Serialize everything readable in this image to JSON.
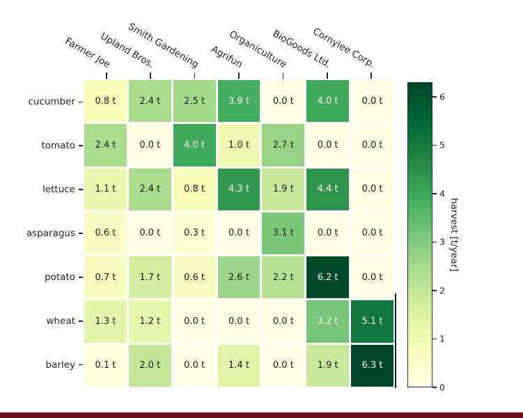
{
  "chart_data": {
    "type": "heatmap",
    "rows": [
      "cucumber",
      "tomato",
      "lettuce",
      "asparagus",
      "potato",
      "wheat",
      "barley"
    ],
    "columns": [
      "Farmer Joe",
      "Upland Bros.",
      "Smith Gardening",
      "Agrifun",
      "Organiculture",
      "BioGoods Ltd.",
      "Cornylee Corp."
    ],
    "values": [
      [
        0.8,
        2.4,
        2.5,
        3.9,
        0.0,
        4.0,
        0.0
      ],
      [
        2.4,
        0.0,
        4.0,
        1.0,
        2.7,
        0.0,
        0.0
      ],
      [
        1.1,
        2.4,
        0.8,
        4.3,
        1.9,
        4.4,
        0.0
      ],
      [
        0.6,
        0.0,
        0.3,
        0.0,
        3.1,
        0.0,
        0.0
      ],
      [
        0.7,
        1.7,
        0.6,
        2.6,
        2.2,
        6.2,
        0.0
      ],
      [
        1.3,
        1.2,
        0.0,
        0.0,
        0.0,
        3.2,
        5.1
      ],
      [
        0.1,
        2.0,
        0.0,
        1.4,
        0.0,
        1.9,
        6.3
      ]
    ],
    "value_suffix": " t",
    "vmin": 0,
    "vmax": 6.3,
    "text_threshold": 3.15,
    "text_colors": {
      "low": "#1a1a1a",
      "high": "#ffffff"
    },
    "colormap": [
      [
        0.0,
        "#ffffe5"
      ],
      [
        0.125,
        "#f7fcb9"
      ],
      [
        0.25,
        "#d9f0a3"
      ],
      [
        0.375,
        "#addd8e"
      ],
      [
        0.5,
        "#78c679"
      ],
      [
        0.625,
        "#41ab5d"
      ],
      [
        0.75,
        "#238443"
      ],
      [
        0.875,
        "#006837"
      ],
      [
        1.0,
        "#004529"
      ]
    ],
    "grid_color": "#ffffff",
    "colorbar": {
      "label": "harvest [t/year]",
      "ticks": [
        0,
        1,
        2,
        3,
        4,
        5,
        6
      ]
    }
  },
  "decor": {
    "bottom_bar_color": "#68111d",
    "side_line_color": "#1f1f1f"
  }
}
